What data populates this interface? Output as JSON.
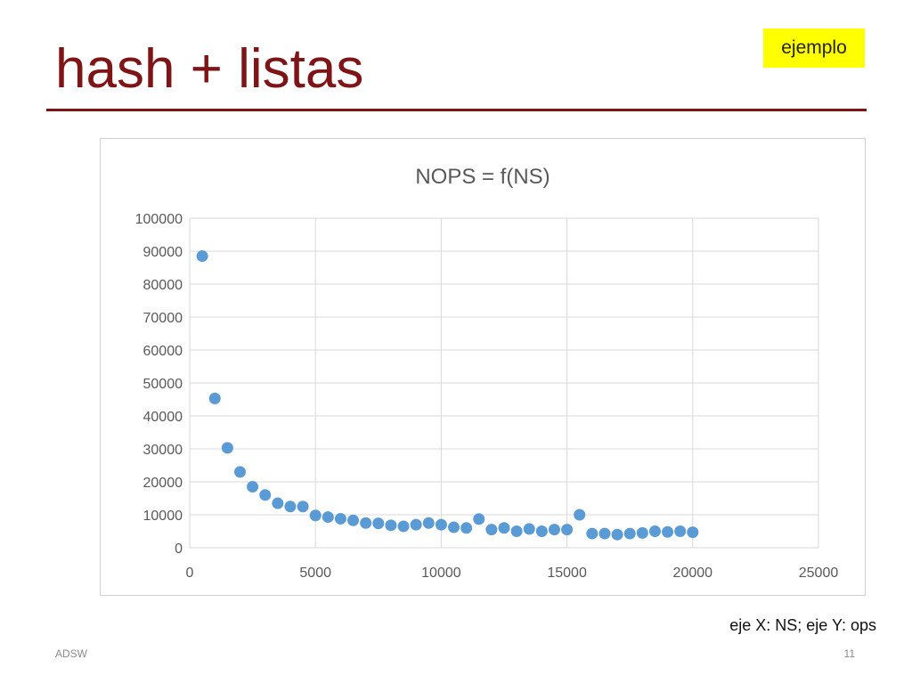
{
  "slide": {
    "title": "hash + listas",
    "badge": "ejemplo",
    "axis_note": "eje X: NS; eje Y: ops",
    "footer_left": "ADSW",
    "page_number": "11"
  },
  "colors": {
    "title": "#7f1416",
    "badge_bg": "#ffff00",
    "points": "#5b9bd5",
    "grid": "#d9d9d9"
  },
  "chart_data": {
    "type": "scatter",
    "title": "NOPS = f(NS)",
    "xlabel": "",
    "ylabel": "",
    "xlim": [
      0,
      25000
    ],
    "ylim": [
      0,
      100000
    ],
    "x_ticks": [
      0,
      5000,
      10000,
      15000,
      20000,
      25000
    ],
    "y_ticks": [
      0,
      10000,
      20000,
      30000,
      40000,
      50000,
      60000,
      70000,
      80000,
      90000,
      100000
    ],
    "grid": true,
    "legend": "none",
    "series": [
      {
        "points": [
          [
            500,
            88500
          ],
          [
            1000,
            45300
          ],
          [
            1500,
            30300
          ],
          [
            2000,
            23000
          ],
          [
            2500,
            18500
          ],
          [
            3000,
            16000
          ],
          [
            3500,
            13500
          ],
          [
            4000,
            12500
          ],
          [
            4500,
            12500
          ],
          [
            5000,
            9800
          ],
          [
            5500,
            9300
          ],
          [
            6000,
            8800
          ],
          [
            6500,
            8300
          ],
          [
            7000,
            7500
          ],
          [
            7500,
            7400
          ],
          [
            8000,
            6800
          ],
          [
            8500,
            6500
          ],
          [
            9000,
            7000
          ],
          [
            9500,
            7500
          ],
          [
            10000,
            7000
          ],
          [
            10500,
            6200
          ],
          [
            11000,
            6000
          ],
          [
            11500,
            8700
          ],
          [
            12000,
            5500
          ],
          [
            12500,
            6000
          ],
          [
            13000,
            5000
          ],
          [
            13500,
            5700
          ],
          [
            14000,
            5000
          ],
          [
            14500,
            5500
          ],
          [
            15000,
            5500
          ],
          [
            15500,
            10000
          ],
          [
            16000,
            4300
          ],
          [
            16500,
            4300
          ],
          [
            17000,
            4000
          ],
          [
            17500,
            4300
          ],
          [
            18000,
            4500
          ],
          [
            18500,
            5000
          ],
          [
            19000,
            4800
          ],
          [
            19500,
            5000
          ],
          [
            20000,
            4700
          ]
        ]
      }
    ]
  }
}
